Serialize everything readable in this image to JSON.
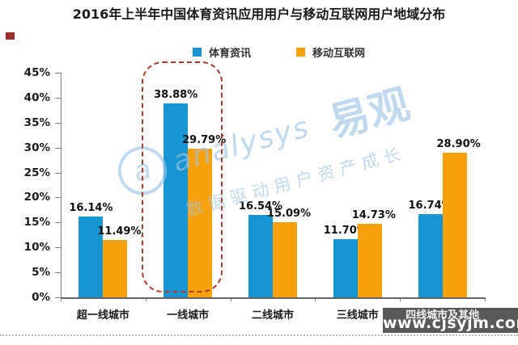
{
  "chart_data": {
    "type": "bar",
    "title": "2016年上半年中国体育资讯应用用户与移动互联网用户地域分布",
    "categories": [
      "超一线城市",
      "一线城市",
      "二线城市",
      "三线城市",
      "四线城市及其他"
    ],
    "series": [
      {
        "name": "体育资讯",
        "color": "#1795d3",
        "values": [
          16.14,
          38.88,
          16.54,
          11.7,
          16.74
        ],
        "labels": [
          "16.14%",
          "38.88%",
          "16.54%",
          "11.70%",
          "16.74%"
        ]
      },
      {
        "name": "移动互联网",
        "color": "#f7a10d",
        "values": [
          11.49,
          29.79,
          15.09,
          14.73,
          28.9
        ],
        "labels": [
          "11.49%",
          "29.79%",
          "15.09%",
          "14.73%",
          "28.90%"
        ]
      }
    ],
    "xlabel": "",
    "ylabel": "",
    "ylim": [
      0,
      45
    ],
    "ytick_step": 5,
    "yticks": [
      "45%",
      "40%",
      "35%",
      "30%",
      "25%",
      "20%",
      "15%",
      "10%",
      "5%",
      "0%"
    ],
    "grid": false,
    "legend_position": "top-center",
    "highlight": {
      "category": "一线城市",
      "style": "red-dashed-rounded-rect"
    }
  },
  "watermark": {
    "brand_script": "analysys",
    "brand_cn": "易观",
    "slogan": "数据驱动用户资产成长",
    "color": "#9ec5e4"
  },
  "footer_watermark": {
    "url": "www.cjsyjm.com",
    "bg": "#4a4a4a",
    "text_color": "#ffffff"
  }
}
